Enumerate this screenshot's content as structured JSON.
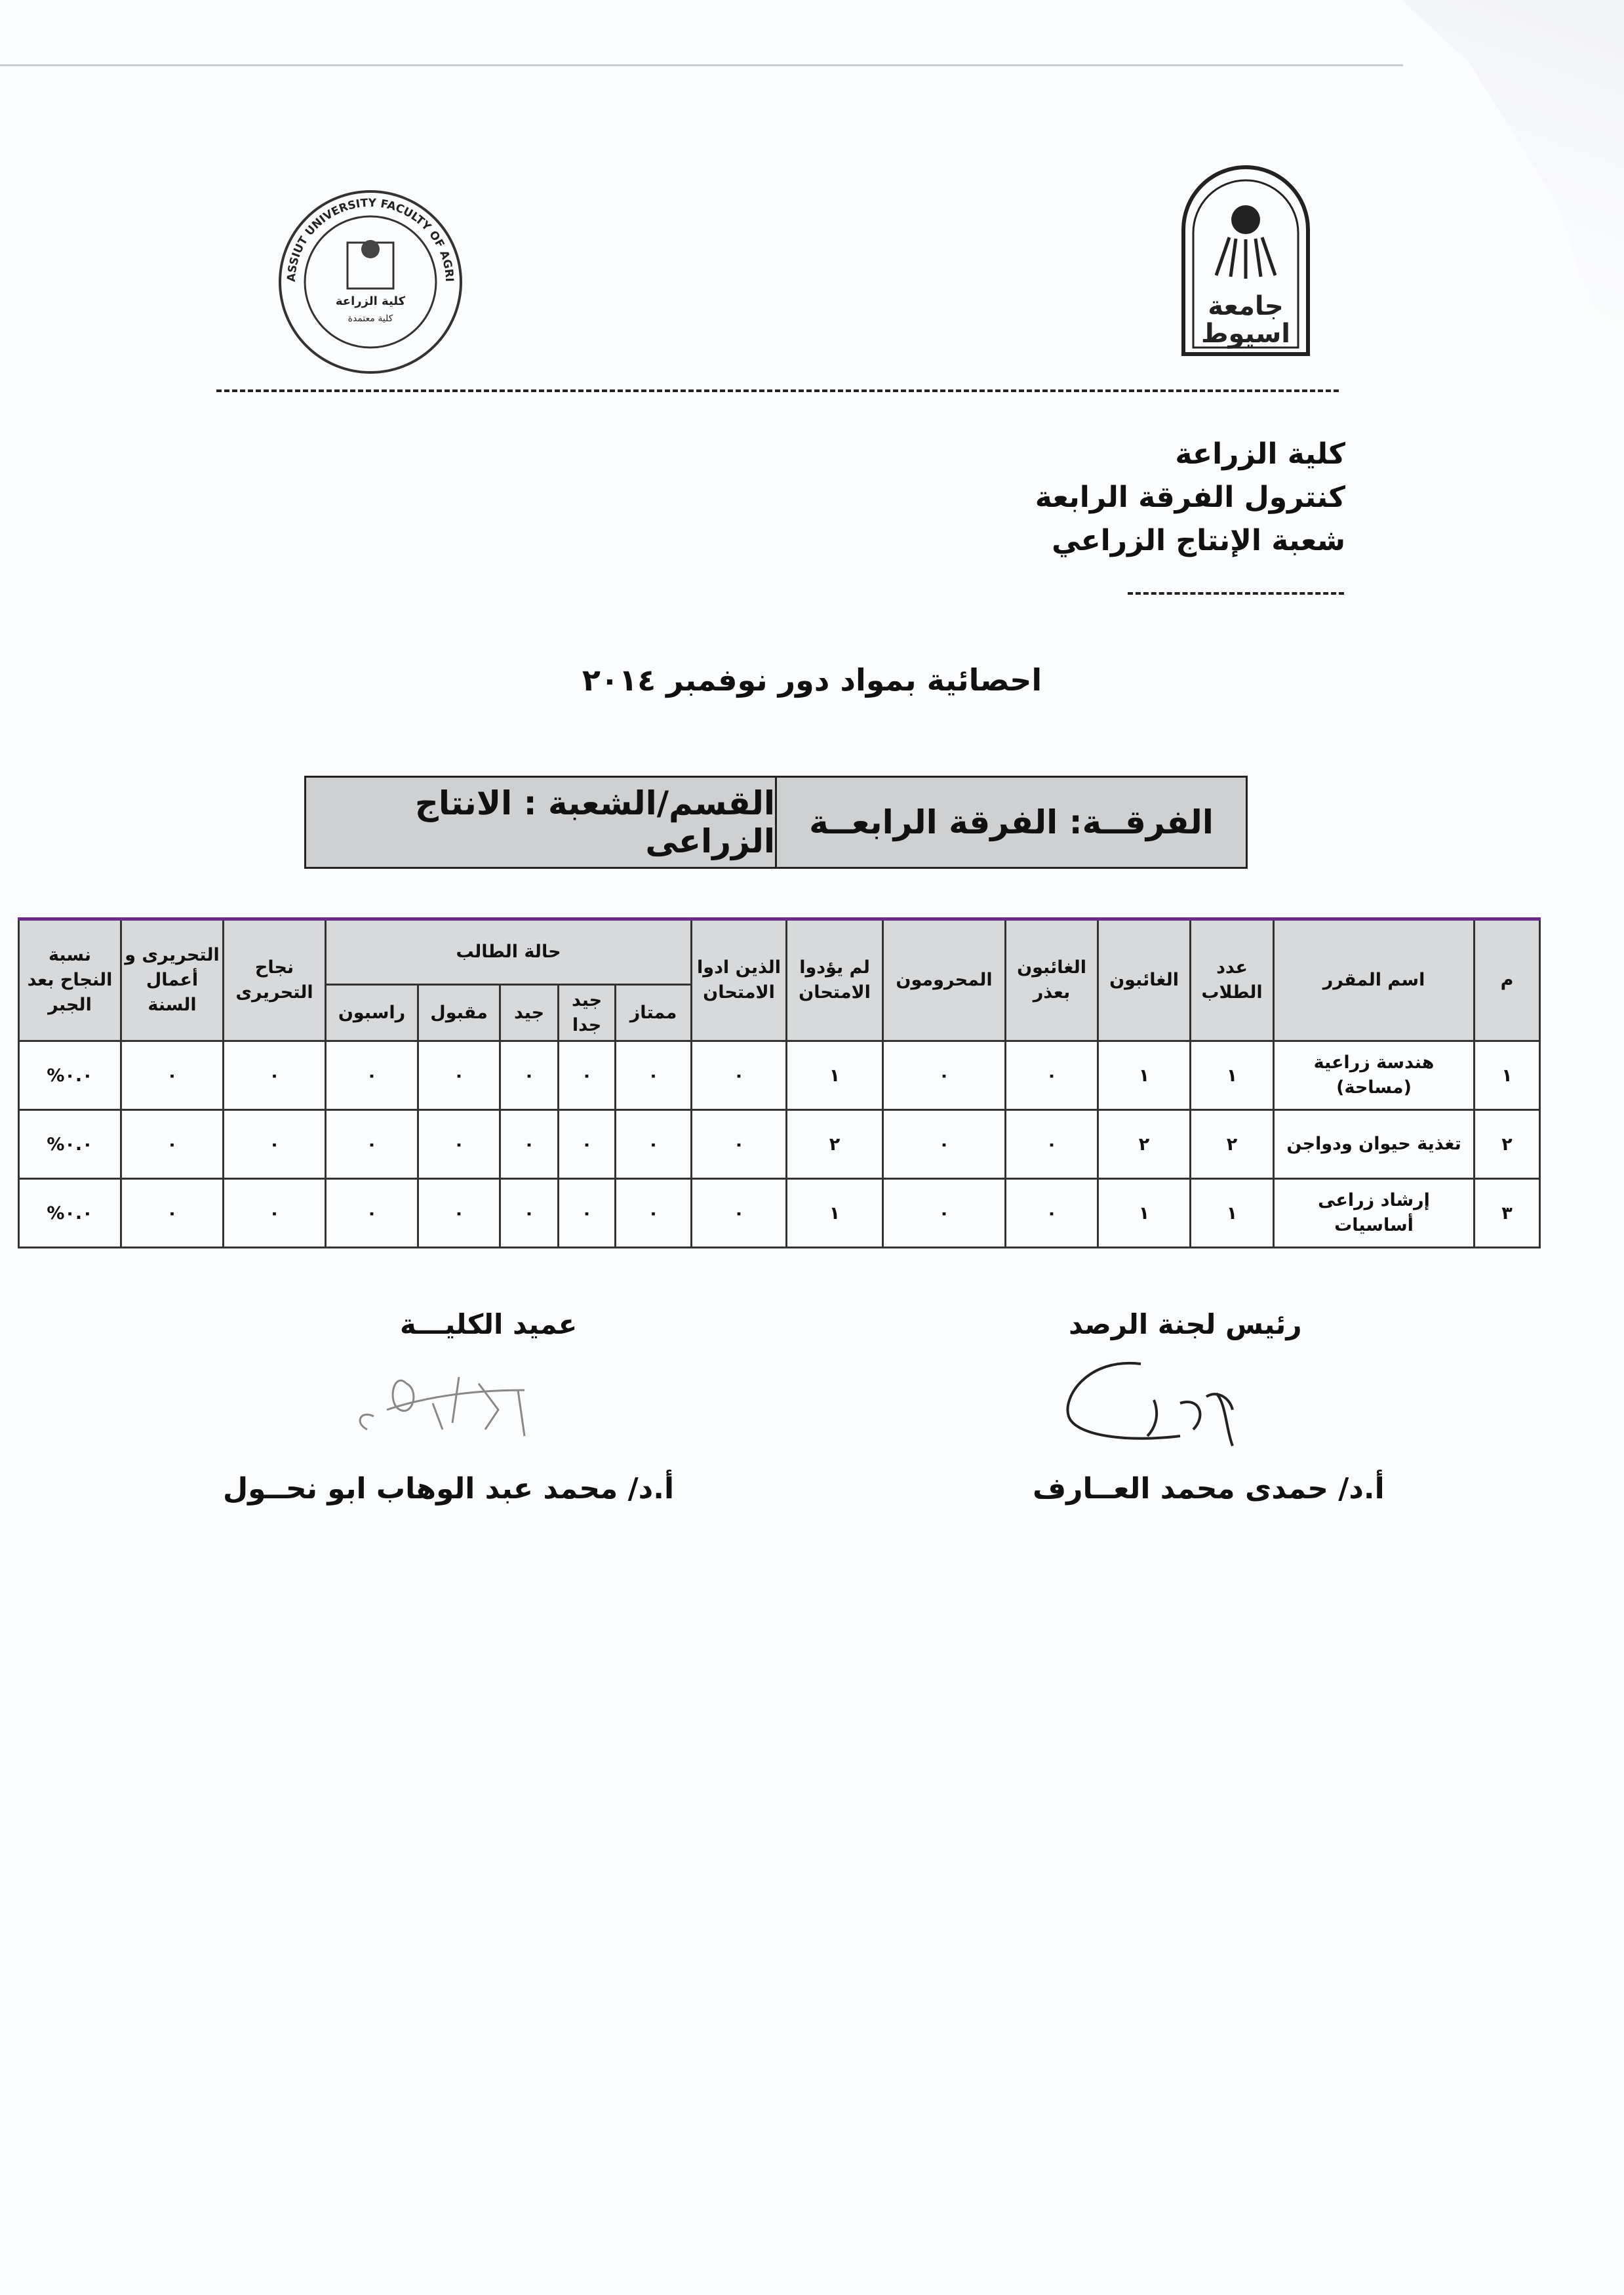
{
  "logos": {
    "left_logo_text": [
      "ASSIUT UNIVERSITY FACULTY OF AGRICULTURE",
      "جامعة اسيوط",
      "كلية الزراعة",
      "كلية معتمدة"
    ],
    "right_logo_text": "جامعة اسيوط"
  },
  "header": {
    "line1": "كلية الزراعة",
    "line2": "كنترول الفرقة الرابعة",
    "line3": "شعبة الإنتاج الزراعي"
  },
  "title": "احصائية بمواد دور نوفمبر ٢٠١٤",
  "info_box": {
    "level": "الفرقــة: الفرقة الرابعــة",
    "department": "القسم/الشعبة : الانتاج الزراعى"
  },
  "table": {
    "headers": {
      "no": "م",
      "course": "اسم المقرر",
      "students": "عدد الطلاب",
      "absent": "الغائبون",
      "absent_excused": "الغائبون بعذر",
      "deprived": "المحرومون",
      "not_taken": "لم يؤدوا الامتحان",
      "taken": "الذين ادوا الامتحان",
      "status": "حالة الطالب",
      "excellent": "ممتاز",
      "very_good": "جيد جدا",
      "good": "جيد",
      "pass": "مقبول",
      "fail": "راسبون",
      "written_pass": "نجاح التحريرى",
      "written_year": "التحريرى و أعمال السنة",
      "pass_rate": "نسبة النجاح بعد الجبر"
    },
    "rows": [
      {
        "no": "١",
        "course": "هندسة زراعية (مساحة)",
        "students": "١",
        "absent": "١",
        "absent_excused": "٠",
        "deprived": "٠",
        "not_taken": "١",
        "taken": "٠",
        "excellent": "٠",
        "very_good": "٠",
        "good": "٠",
        "pass": "٠",
        "fail": "٠",
        "written_pass": "٠",
        "written_year": "٠",
        "pass_rate": "%٠.٠"
      },
      {
        "no": "٢",
        "course": "تغذية حيوان ودواجن",
        "students": "٢",
        "absent": "٢",
        "absent_excused": "٠",
        "deprived": "٠",
        "not_taken": "٢",
        "taken": "٠",
        "excellent": "٠",
        "very_good": "٠",
        "good": "٠",
        "pass": "٠",
        "fail": "٠",
        "written_pass": "٠",
        "written_year": "٠",
        "pass_rate": "%٠.٠"
      },
      {
        "no": "٣",
        "course": "إرشاد زراعى أساسيات",
        "students": "١",
        "absent": "١",
        "absent_excused": "٠",
        "deprived": "٠",
        "not_taken": "١",
        "taken": "٠",
        "excellent": "٠",
        "very_good": "٠",
        "good": "٠",
        "pass": "٠",
        "fail": "٠",
        "written_pass": "٠",
        "written_year": "٠",
        "pass_rate": "%٠.٠"
      }
    ]
  },
  "signatures": {
    "left_title": "رئيس لجنة الرصد",
    "left_name": "أ.د/ حمدى محمد العــارف",
    "right_title": "عميد الكليـــة",
    "right_name": "أ.د/ محمد عبد الوهاب ابو نحــول"
  }
}
